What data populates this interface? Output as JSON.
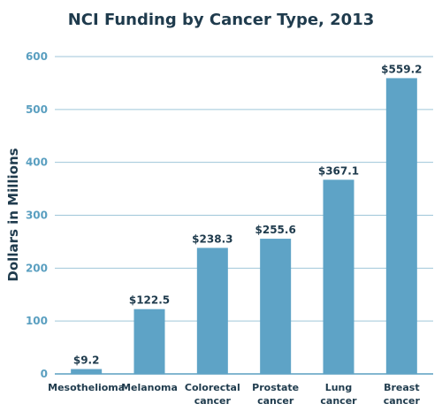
{
  "chart_data": {
    "type": "bar",
    "title": "NCI Funding by Cancer Type, 2013",
    "ylabel": "Dollars in Millions",
    "xlabel": "",
    "categories": [
      [
        "Mesothelioma"
      ],
      [
        "Melanoma"
      ],
      [
        "Colorectal",
        "cancer"
      ],
      [
        "Prostate",
        "cancer"
      ],
      [
        "Lung",
        "cancer"
      ],
      [
        "Breast",
        "cancer"
      ]
    ],
    "values": [
      9.2,
      122.5,
      238.3,
      255.6,
      367.1,
      559.2
    ],
    "value_labels": [
      "$9.2",
      "$122.5",
      "$238.3",
      "$255.6",
      "$367.1",
      "$559.2"
    ],
    "yticks": [
      "0",
      "100",
      "200",
      "300",
      "400",
      "500",
      "600"
    ],
    "ylim": [
      0,
      600
    ],
    "grid": true,
    "bar_color": "#5ea3c6"
  }
}
